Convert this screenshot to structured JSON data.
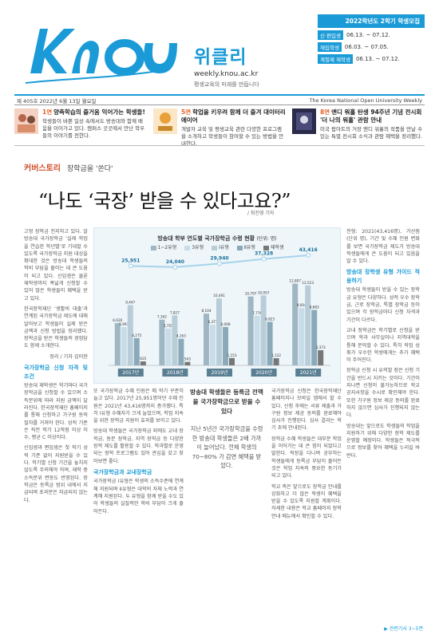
{
  "masthead": {
    "brand_name": "위클리",
    "url": "weekly.knou.ac.kr",
    "tagline": "평생교육의 미래를 만듭니다",
    "schedule_title": "2022학년도 2학기 학생모집",
    "schedule": [
      {
        "label": "신·편입생",
        "value": "06.13. ~ 07.12."
      },
      {
        "label": "재입학생",
        "value": "06.03. ~ 07.05."
      },
      {
        "label": "계절제 재학생",
        "value": "06.13. ~ 07.12."
      }
    ],
    "colors": {
      "accent": "#1a9bd7",
      "orange": "#e5622b"
    }
  },
  "infobar": {
    "left": "제 405호  2022년 6월 13일 월요일",
    "right": "The Korea National Open University Weekly"
  },
  "teasers": [
    {
      "page": "1면",
      "title": "양측학습의 즐거움 익어가는 학생들!",
      "text": "학생들이 바쁜 일상 속에서도 방송대와 함께 배움을 이어가고 있다. 캠퍼스 곳곳에서 만난 학우들의 이야기를 전한다."
    },
    {
      "page": "5면",
      "title": "학업을 키우려 함께 더 즐겨 대이터리에이어",
      "text": "개발자 교육 및 평생교육 관련 다양한 프로그램을 소개하고 학생들이 참여할 수 있는 방법을 안내한다."
    },
    {
      "page": "8면",
      "title": "앤디 워홀 탄생 94주년 기념 전시회 '더 나의 워홀' 관람 안내",
      "text": "미국 팝아트의 거장 앤디 워홀의 작품을 만날 수 있는 특별 전시회 소식과 관람 혜택을 정리했다."
    }
  ],
  "section": {
    "label": "커버스토리",
    "sub": "장학금을 '쏜다'"
  },
  "headline": "“나도 ‘국장’ 받을 수 있다고요?”",
  "byline": "/ 최진영 기자",
  "columns": {
    "col1_intro": "고정 장학금 진지하고 있다. 알 방송대 국가장학금 ‘실제 학업을 연습한 학년별’로 기대할 수 있도록 국가장학금 지원 대상을 확대한 것은 방송대 학생들의 학비 부담을 줄이는 데 큰 도움이 되고 있다. 신입생은 물론 재학생까지 폭넓게 신청할 수 있어 많은 학생들이 혜택을 받고 있다.",
    "col1_p2": "한국장학재단 ‘생활비 대출’과 연계된 국가장학금 제도에 대해 알아보고 학생들이 실제 받은 금액과 신청 방법을 정리했다. 장학금을 받은 학생들의 경험담도 함께 소개한다.",
    "col1_sig": "정리 / 기자 김미현",
    "sub1": "국가장학금 신청 자격 및 조건",
    "col1_p3": "방송대 재학생은 학기마다 국가장학금을 신청할 수 있으며 소득분위에 따라 지원 금액이 달라진다. 한국장학재단 홈페이지를 통해 신청하고 가구원 동의 절차를 거쳐야 한다. 성적 기준은 직전 학기 12학점 이상 이수, 평균 C 이상이다.",
    "col1_p4": "신입생과 편입생은 첫 학기 성적 기준 없이 지원받을 수 있다. 학기별 신청 기간을 놓치지 않도록 주의해야 하며, 재학 중 소득분위 변동도 반영된다. 장학금은 등록금 범위 내에서 지급되며 초과분은 지급되지 않는다.",
    "col2_p1": "또 국가장학금 수혜 인원은 매 학기 꾸준히 늘고 있다. 2017년 25,951명이던 수혜 인원은 2021년 43,416명까지 증가했다. 특히 Ⅰ유형 수혜자가 크게 늘었으며, 학업 지속을 위한 장학금 지원이 효과를 보이고 있다.",
    "col2_p2": "방송대 학생들은 국가장학금 외에도 교내 장학금, 동문 장학금, 지역 장학금 등 다양한 장학 제도를 활용할 수 있다. 학과별로 운영되는 장학 프로그램도 있어 관심을 갖고 찾아보면 좋다.",
    "sub2": "국가장학금과 교내장학금",
    "col2_p3": "국가장학금 Ⅰ유형은 학생의 소득수준에 연계해 지원되며 Ⅱ유형은 대학의 자체 노력과 연계해 지원된다. 두 유형을 함께 받을 수도 있어 학생들의 실질적인 학비 부담이 크게 줄어든다.",
    "pull_quote": "방송대 학생들은 등록금 전액을 국가장학금으로 받을 수 있다",
    "pull_note": "지난 5년간 국가장학금을 수령한 방송대 학생들은 2배 가까이 늘어났다. 전체 학생의 70~80% 가 감면 혜택을 받았다.",
    "col3_p1": "국가장학금 신청은 한국장학재단 홈페이지나 모바일 앱에서 할 수 있다. 신청 후에는 서류 제출과 가구원 정보 제공 동의를 완료해야 심사가 진행된다. 심사 결과는 학기 초에 안내된다.",
    "col3_p2": "장학금 수혜 학생들은 대부분 학업을 이어가는 데 큰 힘이 되었다고 말한다. 직장을 다니며 공부하는 학생들에게 등록금 부담이 줄어든 것은 학업 지속의 중요한 동기가 되고 있다.",
    "col3_p3": "학교 측은 앞으로도 장학금 안내를 강화하고 더 많은 학생이 혜택을 받을 수 있도록 지원할 계획이다. 자세한 내용은 학교 홈페이지 장학 안내 메뉴에서 확인할 수 있다.",
    "col4_p1": "전형: 2021(43,416명), 가산점(단위 명), 기간 및 수혜 인원 변화를 보면 국가장학금 제도가 방송대 학생들에게 큰 도움이 되고 있음을 알 수 있다.",
    "sub3": "방송대 장학생 유형 가이드 적용하기",
    "col4_p2": "방송대 학생들이 받을 수 있는 장학금 유형은 다양하다. 성적 우수 장학금, 근로 장학금, 특별 장학금 등이 있으며 각 장학금마다 신청 자격과 기간이 다르다.",
    "col4_p3": "교내 장학금은 학기별로 신청을 받으며 학과 사무실이나 지역대학을 통해 문의할 수 있다. 특히 학업 성취가 우수한 학생에게는 추가 혜택이 주어진다.",
    "col4_p4": "장학금 신청 시 유의할 점은 신청 기간을 반드시 지키는 것이다. 기간이 지나면 신청이 불가능하므로 학교 공지사항을 수시로 확인해야 한다. 또한 가구원 정보 제공 동의를 완료하지 않으면 심사가 진행되지 않는다.",
    "col4_p5": "방송대는 앞으로도 학생들의 학업을 지원하기 위해 다양한 장학 제도를 운영할 예정이다. 학생들은 적극적으로 정보를 찾아 혜택을 누리길 바란다.",
    "continue": "▶ 관련기사 3~5면"
  },
  "chart_data": {
    "type": "bar",
    "title": "방송대 학부 연도별 국가장학금 수령 현황",
    "unit": "(단위: 명)",
    "categories": [
      "2017년",
      "2018년",
      "2019년",
      "2020년",
      "2021년"
    ],
    "series": [
      {
        "name": "1~2유형",
        "values": [
          6620,
          7162,
          8104,
          10797,
          12807
        ],
        "color": "#9fb6c3"
      },
      {
        "name": "3유형",
        "values": [
          5997,
          5755,
          6371,
          7776,
          9004
        ],
        "color": "#c8dde8"
      },
      {
        "name": "Ⅰ유형",
        "values": [
          9447,
          7827,
          10491,
          10957,
          12523
        ],
        "color": "#b9cdd8"
      },
      {
        "name": "Ⅱ유형",
        "values": [
          4275,
          4163,
          6008,
          6823,
          8683
        ],
        "color": "#8aa9b9"
      },
      {
        "name": "재학생",
        "values": [
          625,
          543,
          1153,
          1122,
          2373
        ],
        "color": "#777777"
      }
    ],
    "total": {
      "name": "전체",
      "values": [
        25951,
        24040,
        29940,
        37328,
        43416
      ],
      "color": "#a7d3ea"
    },
    "ylim": [
      0,
      14000
    ]
  }
}
